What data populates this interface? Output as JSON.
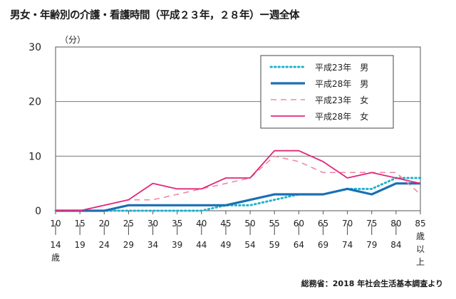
{
  "title": "男女・年齢別の介護・看護時間（平成２３年，２８年）ー週全体",
  "source": "総務省：2018 年社会生活基本調査より",
  "chart_data": {
    "type": "line",
    "ylabel": "（分）",
    "ylim": [
      0,
      30
    ],
    "yticks": [
      "0",
      "10",
      "20",
      "30"
    ],
    "grid": true,
    "legend_position": "top-right",
    "categories": [
      [
        "10",
        "14",
        "歳"
      ],
      [
        "15",
        "19"
      ],
      [
        "20",
        "24"
      ],
      [
        "25",
        "29"
      ],
      [
        "30",
        "34"
      ],
      [
        "35",
        "39"
      ],
      [
        "40",
        "44"
      ],
      [
        "45",
        "49"
      ],
      [
        "50",
        "54"
      ],
      [
        "55",
        "59"
      ],
      [
        "60",
        "64"
      ],
      [
        "65",
        "69"
      ],
      [
        "70",
        "74"
      ],
      [
        "75",
        "79"
      ],
      [
        "80",
        "84"
      ],
      [
        "85",
        "歳",
        "以",
        "上"
      ]
    ],
    "series": [
      {
        "name": "平成23年　男",
        "color": "#1fb3cf",
        "style": "dotted",
        "values": [
          0,
          0,
          0,
          0,
          0,
          0,
          0,
          1,
          1,
          2,
          3,
          3,
          4,
          4,
          6,
          6
        ]
      },
      {
        "name": "平成28年　男",
        "color": "#1a6fb3",
        "style": "solid-thick",
        "values": [
          0,
          0,
          0,
          1,
          1,
          1,
          1,
          1,
          2,
          3,
          3,
          3,
          4,
          3,
          5,
          5
        ]
      },
      {
        "name": "平成23年　女",
        "color": "#f08aa6",
        "style": "dashed",
        "values": [
          0,
          0,
          1,
          2,
          2,
          3,
          4,
          5,
          6,
          10,
          9,
          7,
          7,
          7,
          7,
          3
        ]
      },
      {
        "name": "平成28年　女",
        "color": "#e0287a",
        "style": "solid",
        "values": [
          0,
          0,
          1,
          2,
          5,
          4,
          4,
          6,
          6,
          11,
          11,
          9,
          6,
          7,
          6,
          5
        ]
      }
    ]
  }
}
